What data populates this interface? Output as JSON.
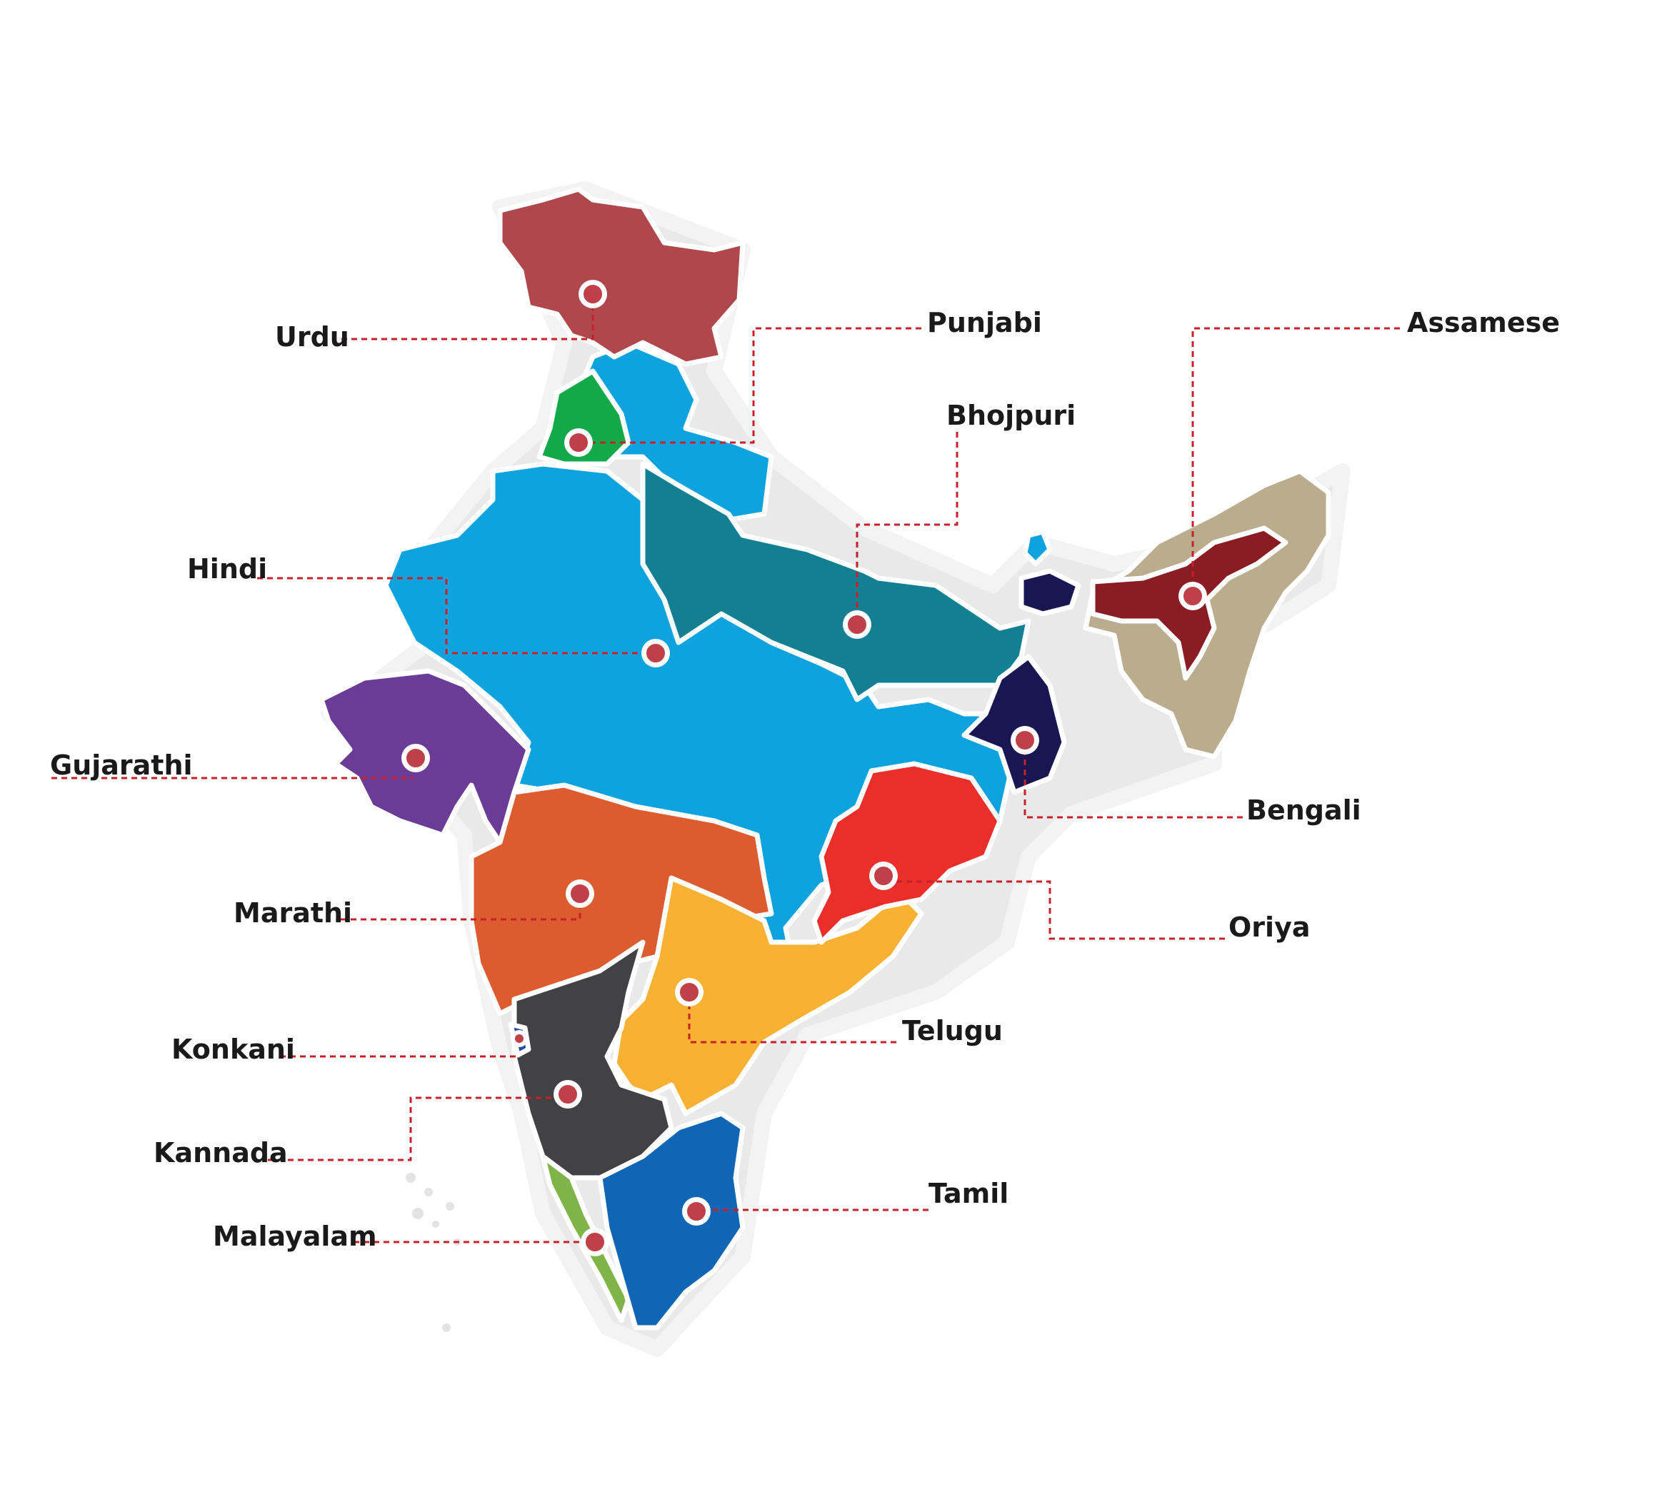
{
  "map": {
    "regions": [
      {
        "name": "jammu-kashmir",
        "language": "Urdu",
        "color": "#b0474c"
      },
      {
        "name": "punjab",
        "language": "Punjabi",
        "color": "#13a94b"
      },
      {
        "name": "hindi-belt",
        "language": "Hindi",
        "color": "#0ea3de"
      },
      {
        "name": "uttar-pradesh-bihar",
        "language": "Bhojpuri",
        "color": "#127f93"
      },
      {
        "name": "gujarat",
        "language": "Gujarathi",
        "color": "#6a3c97"
      },
      {
        "name": "maharashtra",
        "language": "Marathi",
        "color": "#dc5c30"
      },
      {
        "name": "andhra-telangana",
        "language": "Telugu",
        "color": "#f8b133"
      },
      {
        "name": "karnataka",
        "language": "Kannada",
        "color": "#424244"
      },
      {
        "name": "kerala",
        "language": "Malayalam",
        "color": "#7fb449"
      },
      {
        "name": "tamil-nadu",
        "language": "Tamil",
        "color": "#1065b4"
      },
      {
        "name": "odisha",
        "language": "Oriya",
        "color": "#ea2e2a"
      },
      {
        "name": "west-bengal",
        "language": "Bengali",
        "color": "#181653"
      },
      {
        "name": "assam",
        "language": "Assamese",
        "color": "#8a1d24"
      },
      {
        "name": "northeast",
        "language": "",
        "color": "#b9ad8e"
      },
      {
        "name": "goa",
        "language": "Konkani",
        "color": "#1f4fa3"
      }
    ],
    "labels": {
      "urdu": "Urdu",
      "punjabi": "Punjabi",
      "assamese": "Assamese",
      "bhojpuri": "Bhojpuri",
      "hindi": "Hindi",
      "gujarathi": "Gujarathi",
      "bengali": "Bengali",
      "marathi": "Marathi",
      "oriya": "Oriya",
      "konkani": "Konkani",
      "telugu": "Telugu",
      "kannada": "Kannada",
      "tamil": "Tamil",
      "malayalam": "Malayalam"
    },
    "marker_color": "#c0404a",
    "leader_color": "#c8202a"
  }
}
